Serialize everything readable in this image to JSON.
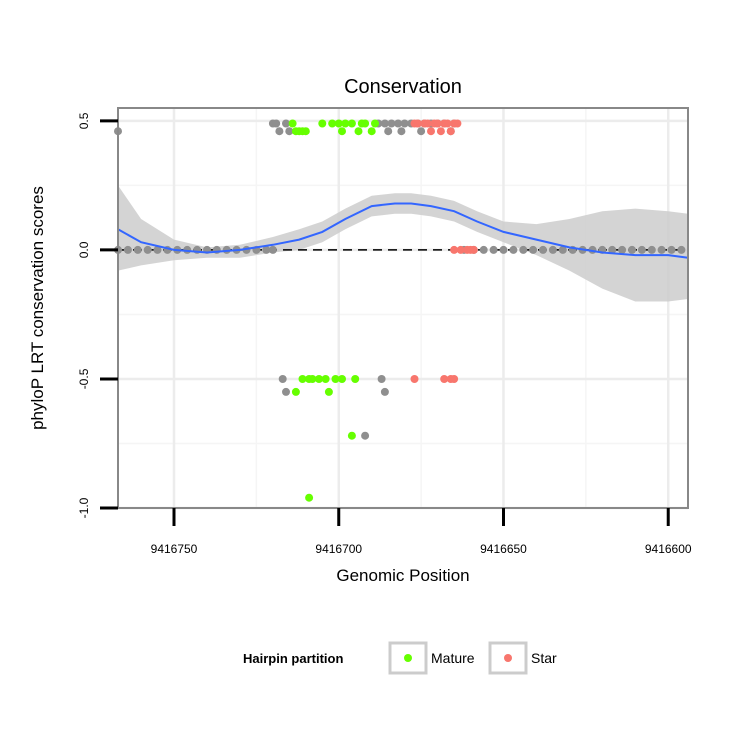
{
  "chart_data": {
    "type": "scatter",
    "title": "Conservation",
    "xlabel": "Genomic Position",
    "ylabel": "phyloP LRT conservation scores",
    "x_reversed": true,
    "xlim": [
      9416767,
      9416594
    ],
    "ylim": [
      -1.0,
      0.55
    ],
    "x_ticks": [
      9416750,
      9416700,
      9416650,
      9416600
    ],
    "x_tick_labels": [
      "9416750",
      "9416700",
      "9416650",
      "9416600"
    ],
    "y_ticks": [
      0.5,
      0.0,
      -0.5,
      -1.0
    ],
    "y_tick_labels": [
      "0.5",
      "0.0",
      "-0.5",
      "-1.0"
    ],
    "grid": true,
    "reference_line": {
      "y": 0,
      "style": "dashed"
    },
    "smooth": {
      "name": "loess fit",
      "color": "#3366ff",
      "band_color": "#cccccc",
      "x": [
        9416767,
        9416760,
        9416750,
        9416740,
        9416730,
        9416720,
        9416712,
        9416705,
        9416698,
        9416690,
        9416683,
        9416678,
        9416672,
        9416665,
        9416658,
        9416650,
        9416640,
        9416630,
        9416620,
        9416610,
        9416600,
        9416594
      ],
      "y": [
        0.08,
        0.03,
        0.0,
        -0.01,
        0.0,
        0.02,
        0.04,
        0.07,
        0.12,
        0.17,
        0.18,
        0.18,
        0.17,
        0.15,
        0.11,
        0.07,
        0.04,
        0.01,
        -0.01,
        -0.02,
        -0.02,
        -0.03
      ],
      "lower": [
        -0.08,
        -0.06,
        -0.04,
        -0.03,
        -0.03,
        -0.01,
        0.0,
        0.03,
        0.08,
        0.13,
        0.14,
        0.14,
        0.13,
        0.11,
        0.07,
        0.03,
        -0.02,
        -0.08,
        -0.15,
        -0.2,
        -0.2,
        -0.19
      ],
      "upper": [
        0.25,
        0.12,
        0.04,
        0.01,
        0.02,
        0.05,
        0.08,
        0.11,
        0.16,
        0.21,
        0.22,
        0.22,
        0.21,
        0.19,
        0.15,
        0.11,
        0.1,
        0.12,
        0.15,
        0.16,
        0.15,
        0.14
      ]
    },
    "series": [
      {
        "name": "Other",
        "color": "#8f8f8f",
        "points": [
          [
            9416767,
            0.46
          ],
          [
            9416767,
            0.0
          ],
          [
            9416764,
            0.0
          ],
          [
            9416761,
            0.0
          ],
          [
            9416758,
            0.0
          ],
          [
            9416755,
            0.0
          ],
          [
            9416752,
            0.0
          ],
          [
            9416749,
            0.0
          ],
          [
            9416746,
            0.0
          ],
          [
            9416743,
            0.0
          ],
          [
            9416740,
            0.0
          ],
          [
            9416737,
            0.0
          ],
          [
            9416734,
            0.0
          ],
          [
            9416731,
            0.0
          ],
          [
            9416728,
            0.0
          ],
          [
            9416725,
            0.0
          ],
          [
            9416722,
            0.0
          ],
          [
            9416720,
            0.0
          ],
          [
            9416720,
            0.49
          ],
          [
            9416719,
            0.49
          ],
          [
            9416718,
            0.46
          ],
          [
            9416716,
            0.49
          ],
          [
            9416715,
            0.46
          ],
          [
            9416717,
            -0.5
          ],
          [
            9416716,
            -0.55
          ],
          [
            9416688,
            0.49
          ],
          [
            9416686,
            0.49
          ],
          [
            9416685,
            0.46
          ],
          [
            9416684,
            0.49
          ],
          [
            9416682,
            0.49
          ],
          [
            9416681,
            0.46
          ],
          [
            9416680,
            0.49
          ],
          [
            9416678,
            0.49
          ],
          [
            9416676,
            0.49
          ],
          [
            9416675,
            0.46
          ],
          [
            9416674,
            0.49
          ],
          [
            9416672,
            0.49
          ],
          [
            9416670,
            0.49
          ],
          [
            9416668,
            0.49
          ],
          [
            9416666,
            0.46
          ],
          [
            9416665,
            0.49
          ],
          [
            9416687,
            -0.5
          ],
          [
            9416686,
            -0.55
          ],
          [
            9416692,
            -0.72
          ],
          [
            9416662,
            0.0
          ],
          [
            9416659,
            0.0
          ],
          [
            9416656,
            0.0
          ],
          [
            9416653,
            0.0
          ],
          [
            9416650,
            0.0
          ],
          [
            9416647,
            0.0
          ],
          [
            9416644,
            0.0
          ],
          [
            9416641,
            0.0
          ],
          [
            9416638,
            0.0
          ],
          [
            9416635,
            0.0
          ],
          [
            9416632,
            0.0
          ],
          [
            9416629,
            0.0
          ],
          [
            9416626,
            0.0
          ],
          [
            9416623,
            0.0
          ],
          [
            9416620,
            0.0
          ],
          [
            9416617,
            0.0
          ],
          [
            9416614,
            0.0
          ],
          [
            9416611,
            0.0
          ],
          [
            9416608,
            0.0
          ],
          [
            9416605,
            0.0
          ],
          [
            9416602,
            0.0
          ],
          [
            9416599,
            0.0
          ],
          [
            9416596,
            0.0
          ]
        ]
      },
      {
        "name": "Mature",
        "color": "#66ff00",
        "points": [
          [
            9416714,
            0.49
          ],
          [
            9416713,
            0.46
          ],
          [
            9416712,
            0.46
          ],
          [
            9416711,
            0.46
          ],
          [
            9416710,
            0.46
          ],
          [
            9416705,
            0.49
          ],
          [
            9416702,
            0.49
          ],
          [
            9416700,
            0.49
          ],
          [
            9416699,
            0.46
          ],
          [
            9416698,
            0.49
          ],
          [
            9416696,
            0.49
          ],
          [
            9416694,
            0.46
          ],
          [
            9416693,
            0.49
          ],
          [
            9416692,
            0.49
          ],
          [
            9416690,
            0.46
          ],
          [
            9416689,
            0.49
          ],
          [
            9416713,
            -0.55
          ],
          [
            9416711,
            -0.5
          ],
          [
            9416709,
            -0.5
          ],
          [
            9416708,
            -0.5
          ],
          [
            9416706,
            -0.5
          ],
          [
            9416704,
            -0.5
          ],
          [
            9416703,
            -0.55
          ],
          [
            9416701,
            -0.5
          ],
          [
            9416699,
            -0.5
          ],
          [
            9416695,
            -0.5
          ],
          [
            9416696,
            -0.72
          ],
          [
            9416709,
            -0.96
          ]
        ]
      },
      {
        "name": "Star",
        "color": "#f8766d",
        "points": [
          [
            9416677,
            0.49
          ],
          [
            9416676,
            0.49
          ],
          [
            9416674,
            0.49
          ],
          [
            9416673,
            0.49
          ],
          [
            9416672,
            0.46
          ],
          [
            9416671,
            0.49
          ],
          [
            9416670,
            0.49
          ],
          [
            9416669,
            0.46
          ],
          [
            9416668,
            0.49
          ],
          [
            9416667,
            0.49
          ],
          [
            9416666,
            0.46
          ],
          [
            9416665,
            0.49
          ],
          [
            9416664,
            0.49
          ],
          [
            9416677,
            -0.5
          ],
          [
            9416668,
            -0.5
          ],
          [
            9416666,
            -0.5
          ],
          [
            9416665,
            -0.5
          ],
          [
            9416665,
            0.0
          ],
          [
            9416663,
            0.0
          ],
          [
            9416661,
            0.0
          ],
          [
            9416660,
            0.0
          ],
          [
            9416659,
            0.0
          ]
        ]
      }
    ],
    "legend": {
      "title": "Hairpin partition",
      "placement": "bottom",
      "entries": [
        {
          "label": "Mature",
          "color": "#66ff00"
        },
        {
          "label": "Star",
          "color": "#f8766d"
        }
      ]
    }
  }
}
